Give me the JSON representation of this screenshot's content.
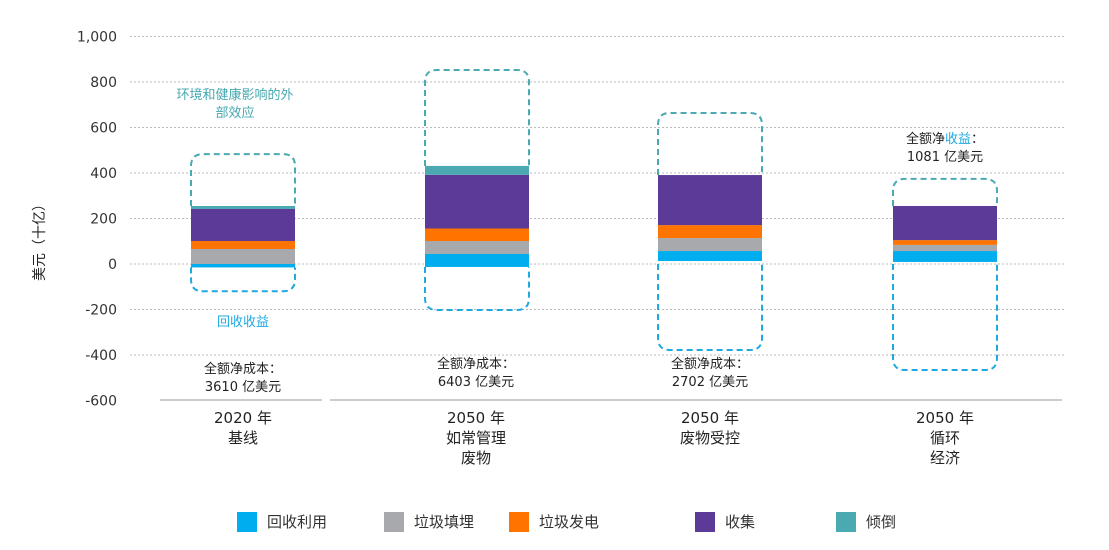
{
  "chart_data": {
    "type": "bar",
    "stacked": true,
    "ylabel": "美元（十亿）",
    "ylim": [
      -600,
      1000
    ],
    "yticks": [
      1000,
      800,
      600,
      400,
      200,
      0,
      -200,
      -400,
      -600
    ],
    "ytick_labels": [
      "1,000",
      "800",
      "600",
      "400",
      "200",
      "0",
      "-200",
      "-400",
      "-600"
    ],
    "grid": true,
    "legend_position": "bottom",
    "categories": [
      [
        "2020 年",
        "基线"
      ],
      [
        "2050 年",
        "如常管理",
        "废物"
      ],
      [
        "2050 年",
        "废物受控"
      ],
      [
        "2050 年",
        "循环",
        "经济"
      ]
    ],
    "series": [
      {
        "name": "回收利用",
        "color": "#00aeef",
        "ranges": [
          [
            -15,
            0
          ],
          [
            -13,
            44
          ],
          [
            13,
            57
          ],
          [
            9,
            57
          ]
        ]
      },
      {
        "name": "垃圾填埋",
        "color": "#a7a9ac",
        "ranges": [
          [
            0,
            66
          ],
          [
            44,
            101
          ],
          [
            57,
            114
          ],
          [
            57,
            84
          ]
        ]
      },
      {
        "name": "垃圾发电",
        "color": "#ff7300",
        "ranges": [
          [
            66,
            101
          ],
          [
            101,
            156
          ],
          [
            114,
            171
          ],
          [
            84,
            105
          ]
        ]
      },
      {
        "name": "收集",
        "color": "#5b3b97",
        "ranges": [
          [
            101,
            242
          ],
          [
            156,
            392
          ],
          [
            171,
            391
          ],
          [
            105,
            255
          ]
        ]
      },
      {
        "name": "倾倒",
        "color": "#4aa9b1",
        "ranges": [
          [
            242,
            255
          ],
          [
            392,
            431
          ],
          [
            391,
            391
          ],
          [
            255,
            255
          ]
        ]
      }
    ],
    "externality_box_tops": [
      483,
      853,
      664,
      374
    ],
    "benefit_box_bottoms": [
      -120,
      -202,
      -378,
      -466
    ],
    "annotations": {
      "externality": "环境和健康影响的外部效应",
      "externality_line1": "环境和健康影响的外",
      "externality_line2": "部效应",
      "benefit": "回收收益",
      "net_cost_label": "全额净成本：",
      "net_benefit_prefix": "全额净",
      "net_benefit_highlight": "收益",
      "net_benefit_suffix": "：",
      "values": [
        "3610 亿美元",
        "6403 亿美元",
        "2702 亿美元",
        "1081 亿美元"
      ]
    }
  }
}
